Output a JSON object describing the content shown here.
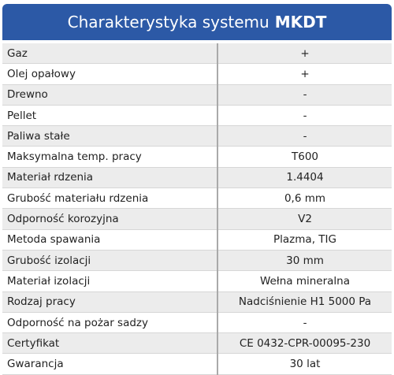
{
  "header": {
    "title": "Charakterystyka systemu",
    "title_emphasis": "MKDT"
  },
  "table": {
    "rows": [
      [
        "Gaz",
        "+"
      ],
      [
        "Olej opałowy",
        "+"
      ],
      [
        "Drewno",
        "-"
      ],
      [
        "Pellet",
        "-"
      ],
      [
        "Paliwa stałe",
        "-"
      ],
      [
        "Maksymalna temp. pracy",
        "T600"
      ],
      [
        "Materiał rdzenia",
        "1.4404"
      ],
      [
        "Grubość materiału rdzenia",
        "0,6 mm"
      ],
      [
        "Odporność korozyjna",
        "V2"
      ],
      [
        "Metoda spawania",
        "Plazma, TIG"
      ],
      [
        "Grubość izolacji",
        "30 mm"
      ],
      [
        "Materiał izolacji",
        "Wełna mineralna"
      ],
      [
        "Rodzaj pracy",
        "Nadciśnienie H1 5000 Pa"
      ],
      [
        "Odporność na pożar sadzy",
        "-"
      ],
      [
        "Certyfikat",
        "CE 0432-CPR-00095-230"
      ],
      [
        "Gwarancja",
        "30 lat"
      ]
    ]
  }
}
